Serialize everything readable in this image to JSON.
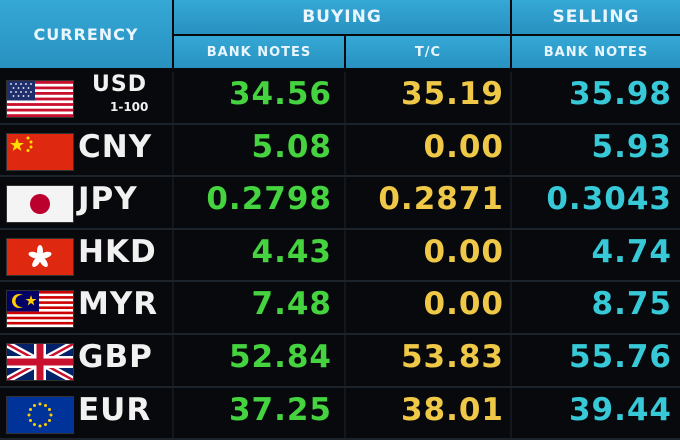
{
  "header": {
    "currency": "CURRENCY",
    "buying": "BUYING",
    "selling": "SELLING",
    "bank_notes": "BANK NOTES",
    "tc": "T/C",
    "bank_notes_sell": "BANK NOTES"
  },
  "rows": [
    {
      "code": "USD",
      "unit": "1-100",
      "flag": "us-flag-icon",
      "buy_notes": "34.56",
      "buy_tc": "35.19",
      "sell_notes": "35.98"
    },
    {
      "code": "CNY",
      "flag": "china-flag-icon",
      "buy_notes": "5.08",
      "buy_tc": "0.00",
      "sell_notes": "5.93"
    },
    {
      "code": "JPY",
      "flag": "japan-flag-icon",
      "buy_notes": "0.2798",
      "buy_tc": "0.2871",
      "sell_notes": "0.3043"
    },
    {
      "code": "HKD",
      "flag": "hong-kong-flag-icon",
      "buy_notes": "4.43",
      "buy_tc": "0.00",
      "sell_notes": "4.74"
    },
    {
      "code": "MYR",
      "flag": "malaysia-flag-icon",
      "buy_notes": "7.48",
      "buy_tc": "0.00",
      "sell_notes": "8.75"
    },
    {
      "code": "GBP",
      "flag": "uk-flag-icon",
      "buy_notes": "52.84",
      "buy_tc": "53.83",
      "sell_notes": "55.76"
    },
    {
      "code": "EUR",
      "flag": "eu-flag-icon",
      "buy_notes": "37.25",
      "buy_tc": "38.01",
      "sell_notes": "39.44"
    }
  ],
  "colors": {
    "header_bg": "#2f9fcf",
    "buy_notes": "#45d43f",
    "buy_tc": "#f0c847",
    "sell_notes": "#38c9d8"
  }
}
